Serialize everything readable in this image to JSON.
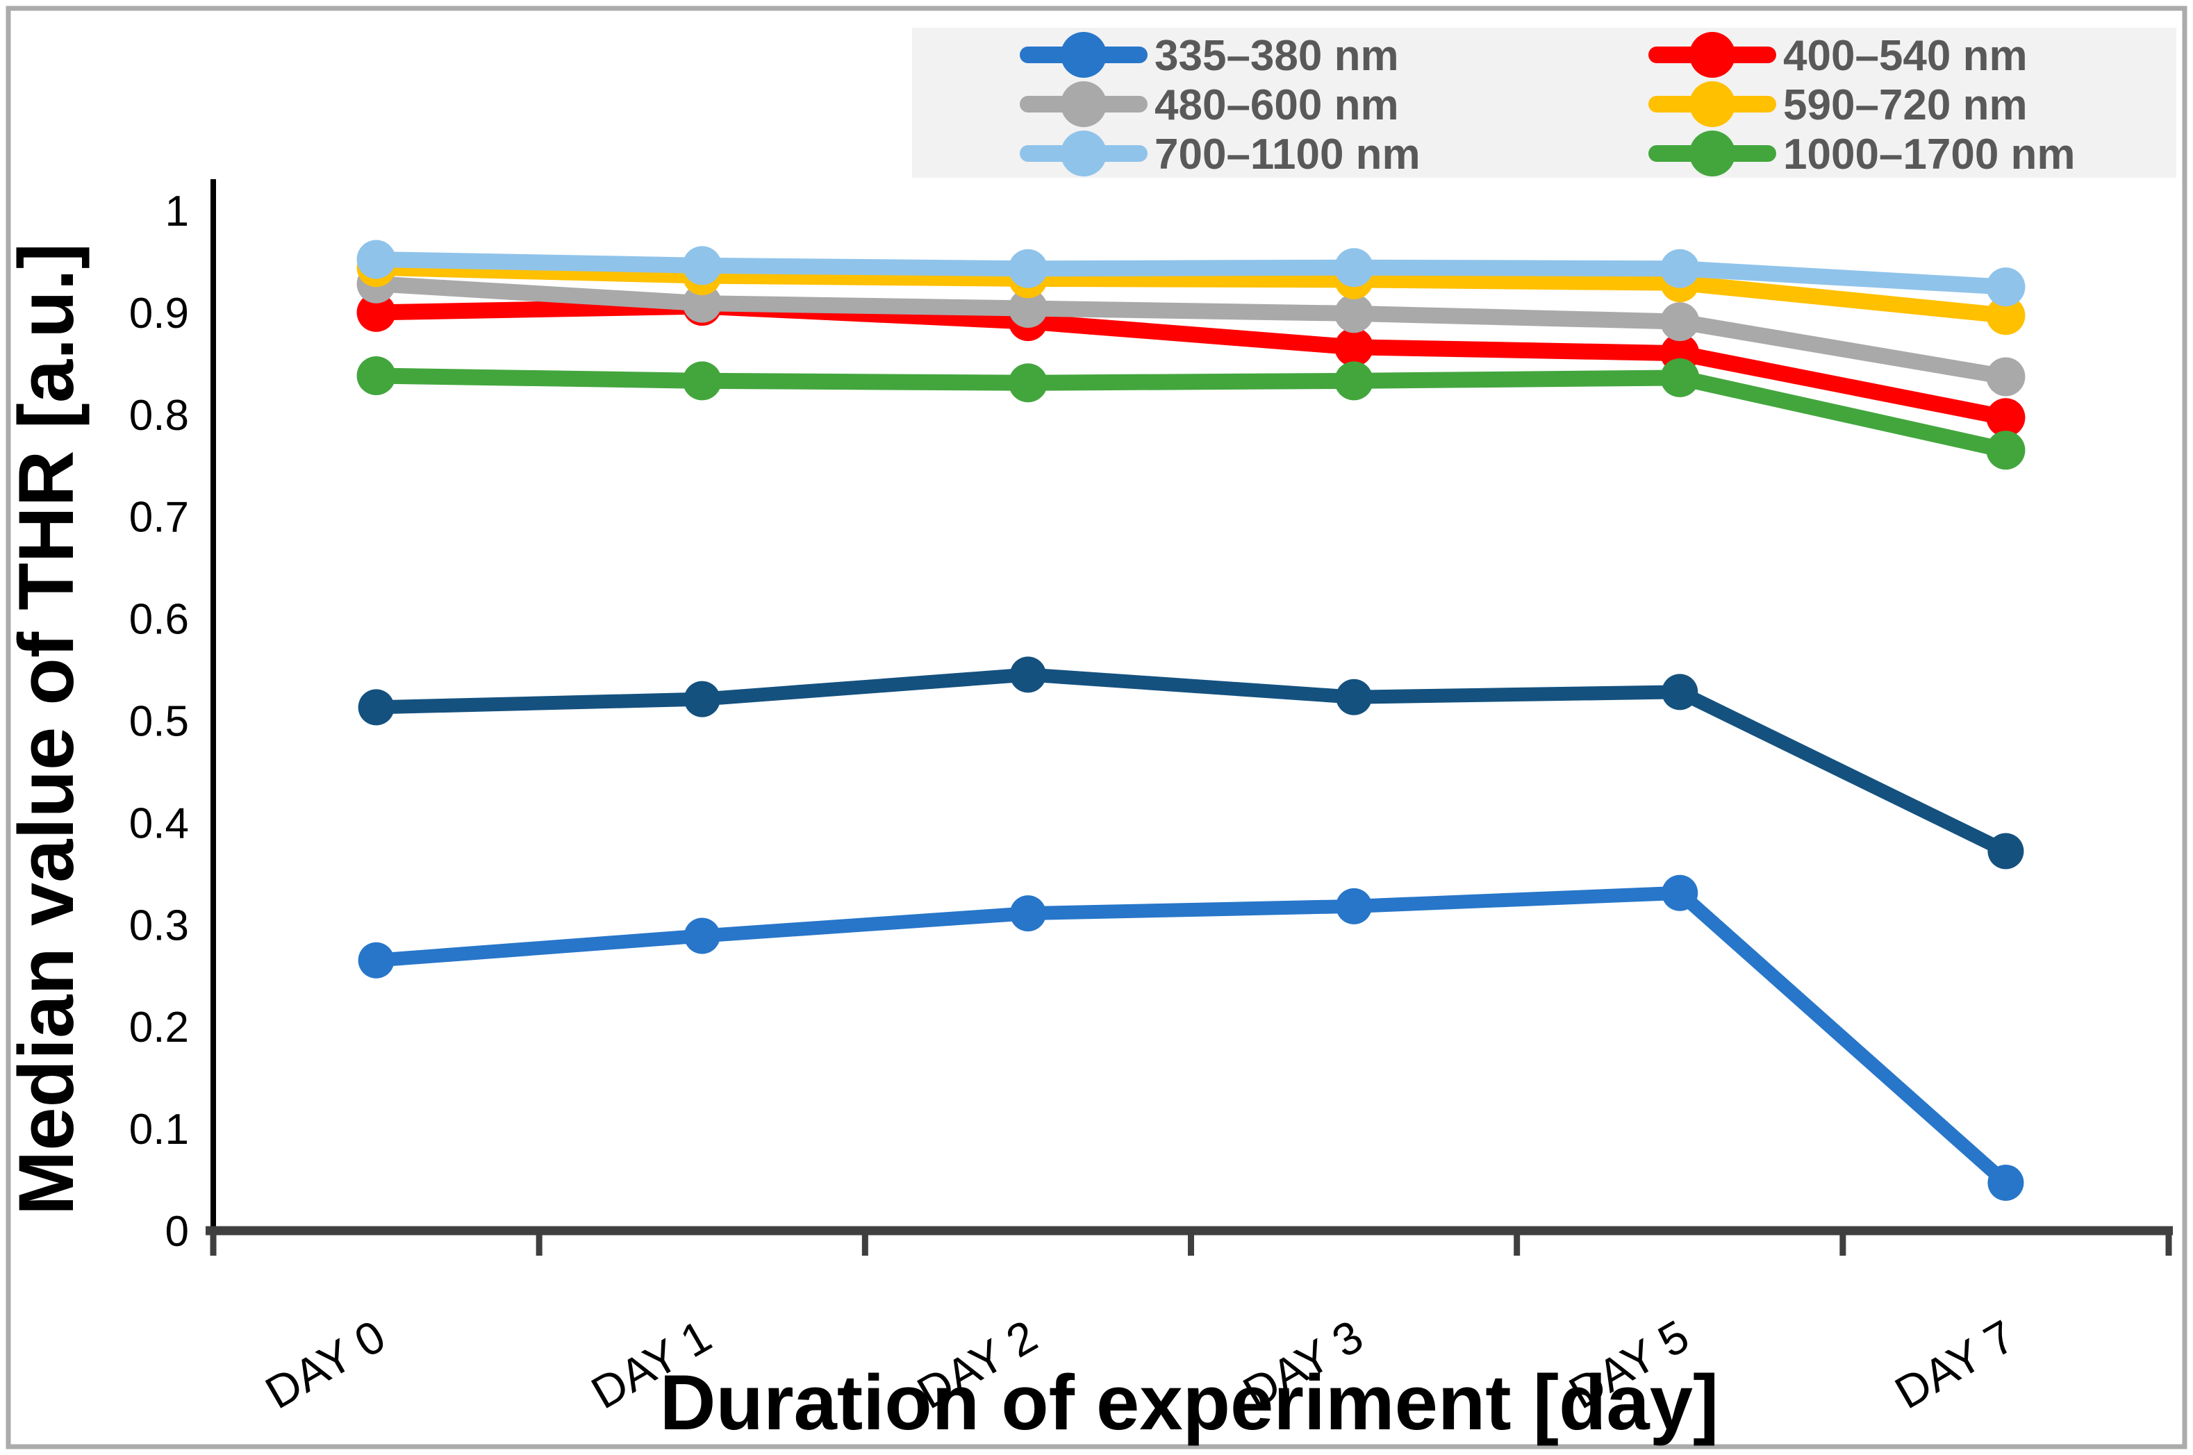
{
  "chart_data": {
    "type": "line",
    "title": "",
    "xlabel": "Duration of experiment [day]",
    "ylabel": "Median value of THR [a.u.]",
    "categories": [
      "DAY 0",
      "DAY 1",
      "DAY 2",
      "DAY 3",
      "DAY 5",
      "DAY 7"
    ],
    "y_tick_labels": [
      "0",
      "0.1",
      "0.2",
      "0.3",
      "0.4",
      "0.5",
      "0.6",
      "0.7",
      "0.8",
      "0.9",
      "1"
    ],
    "ylim": [
      0,
      1
    ],
    "grid": false,
    "legend_position": "top-right",
    "legend_background": "#F2F2F2",
    "axis_color": "#000000",
    "x_axis_bar_color": "#3F3F3F",
    "figure_border_color": "#ABABAB",
    "series": [
      {
        "name": "335–380 nm",
        "color": "#2776C9",
        "values": [
          0.265,
          0.289,
          0.311,
          0.318,
          0.331,
          0.047
        ],
        "in_legend": true,
        "legend_row": 0,
        "legend_col": 0
      },
      {
        "name": "400–540 nm",
        "color": "#FE0000",
        "values": [
          0.9,
          0.906,
          0.891,
          0.866,
          0.86,
          0.797
        ],
        "in_legend": true,
        "legend_row": 0,
        "legend_col": 1
      },
      {
        "name": "480–600 nm",
        "color": "#A9A9A9",
        "values": [
          0.928,
          0.909,
          0.904,
          0.899,
          0.891,
          0.837
        ],
        "in_legend": true,
        "legend_row": 1,
        "legend_col": 0
      },
      {
        "name": "590–720 nm",
        "color": "#FFC000",
        "values": [
          0.944,
          0.936,
          0.933,
          0.932,
          0.929,
          0.897
        ],
        "in_legend": true,
        "legend_row": 1,
        "legend_col": 1
      },
      {
        "name": "700–1100 nm",
        "color": "#8FC3EA",
        "values": [
          0.952,
          0.946,
          0.943,
          0.944,
          0.943,
          0.925
        ],
        "in_legend": true,
        "legend_row": 2,
        "legend_col": 0
      },
      {
        "name": "1000–1700 nm",
        "color": "#43A63D",
        "values": [
          0.838,
          0.833,
          0.831,
          0.833,
          0.836,
          0.765
        ],
        "in_legend": true,
        "legend_row": 2,
        "legend_col": 1
      },
      {
        "name": "unlabeled series (dark navy)",
        "color": "#14517F",
        "values": [
          0.513,
          0.521,
          0.545,
          0.523,
          0.528,
          0.372
        ],
        "in_legend": false
      }
    ]
  }
}
